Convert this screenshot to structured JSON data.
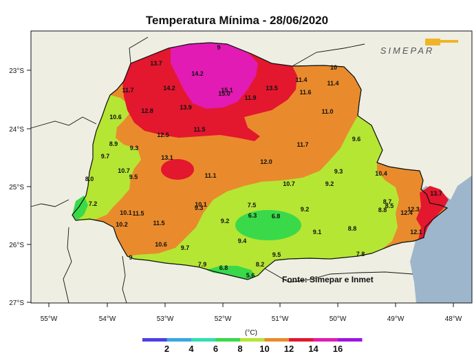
{
  "title": "Temperatura Mínima - 28/06/2020",
  "brand": "SIMEPAR",
  "source": "Fonte: Simepar e Inmet",
  "colors": {
    "sea": "#9eb6cc",
    "land": "#eeeee3",
    "c_8_10": "#b5e634",
    "c_10_12": "#e98b2c",
    "c_12_14": "#e3172e",
    "c_14_16": "#e21bb4",
    "c_6_8": "#39d94a"
  },
  "axes": {
    "lon_labels": [
      "55°W",
      "54°W",
      "53°W",
      "52°W",
      "51°W",
      "50°W",
      "49°W",
      "48°W"
    ],
    "lat_labels": [
      "23°S",
      "24°S",
      "25°S",
      "26°S",
      "27°S"
    ]
  },
  "legend": {
    "unit": "(°C)",
    "ticks": [
      "2",
      "4",
      "6",
      "8",
      "10",
      "12",
      "14",
      "16"
    ],
    "colors": [
      "#4e3fe3",
      "#37a7e5",
      "#2fdfb4",
      "#39d94a",
      "#b5e634",
      "#e98b2c",
      "#e3172e",
      "#e21bb4",
      "#9c17e0"
    ]
  },
  "stations": [
    {
      "v": "13.7"
    },
    {
      "v": "14.2"
    },
    {
      "v": "9"
    },
    {
      "v": "11.7"
    },
    {
      "v": "14.2"
    },
    {
      "v": "15.1"
    },
    {
      "v": "15.0"
    },
    {
      "v": "13.5"
    },
    {
      "v": "11.4"
    },
    {
      "v": "10"
    },
    {
      "v": "11.4"
    },
    {
      "v": "11.6"
    },
    {
      "v": "12.8"
    },
    {
      "v": "13.9"
    },
    {
      "v": "11.9"
    },
    {
      "v": "10.6"
    },
    {
      "v": "11.0"
    },
    {
      "v": "11.5"
    },
    {
      "v": "12.5"
    },
    {
      "v": "8.9"
    },
    {
      "v": "9.3"
    },
    {
      "v": "11.7"
    },
    {
      "v": "9.6"
    },
    {
      "v": "9.7"
    },
    {
      "v": "13.1"
    },
    {
      "v": "12.0"
    },
    {
      "v": "10.7"
    },
    {
      "v": "9.5"
    },
    {
      "v": "11.1"
    },
    {
      "v": "9.3"
    },
    {
      "v": "10.4"
    },
    {
      "v": "8.0"
    },
    {
      "v": "10.7"
    },
    {
      "v": "9.2"
    },
    {
      "v": "13.7"
    },
    {
      "v": "7.2"
    },
    {
      "v": "10.1"
    },
    {
      "v": "9.3"
    },
    {
      "v": "7.5"
    },
    {
      "v": "8.7"
    },
    {
      "v": "8.5"
    },
    {
      "v": "8.8"
    },
    {
      "v": "12.3"
    },
    {
      "v": "12.4"
    },
    {
      "v": "10.1"
    },
    {
      "v": "11.5"
    },
    {
      "v": "9.2"
    },
    {
      "v": "6.3"
    },
    {
      "v": "6.8"
    },
    {
      "v": "10.2"
    },
    {
      "v": "9.2"
    },
    {
      "v": "11.5"
    },
    {
      "v": "8.8"
    },
    {
      "v": "9.1"
    },
    {
      "v": "12.1"
    },
    {
      "v": "9.4"
    },
    {
      "v": "10.6"
    },
    {
      "v": "9.7"
    },
    {
      "v": "9.5"
    },
    {
      "v": "7.8"
    },
    {
      "v": "9"
    },
    {
      "v": "8.2"
    },
    {
      "v": "7.9"
    },
    {
      "v": "6.8"
    },
    {
      "v": "5.6"
    }
  ]
}
